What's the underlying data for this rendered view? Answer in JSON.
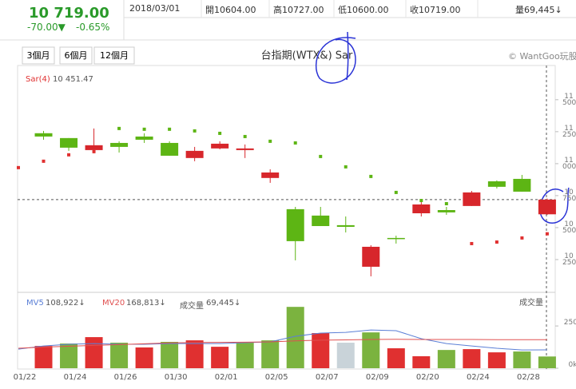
{
  "header": {
    "price": "10 719.00",
    "change": "-70.00▼",
    "change_pct": "-0.65%",
    "date": "2018/03/01",
    "open": "開10604.00",
    "high": "高10727.00",
    "low": "低10600.00",
    "close": "收10719.00",
    "volume": "量69,445↓"
  },
  "toolbar": {
    "ranges": [
      "3個月",
      "6個月",
      "12個月"
    ],
    "copyright": "© WantGoo玩股網"
  },
  "chart_data": {
    "type": "candlestick",
    "title": "台指期(WTX&) Sar",
    "categories": [
      "01/22",
      null,
      "01/24",
      null,
      "01/26",
      null,
      "01/30",
      null,
      "02/01",
      null,
      "02/05",
      null,
      "02/07",
      null,
      "02/09",
      null,
      "02/20",
      null,
      "02/24",
      null,
      "02/28",
      null
    ],
    "open": [
      null,
      11238,
      11200,
      11106,
      11162,
      11212,
      11162,
      11044,
      11119,
      11106,
      10888,
      10644,
      10594,
      10519,
      10194,
      10419,
      10612,
      10637,
      10669,
      10862,
      10881,
      10604
    ],
    "high": [
      null,
      11256,
      11200,
      11275,
      11175,
      11237,
      11175,
      11131,
      11175,
      11150,
      10956,
      10662,
      10662,
      10587,
      10362,
      10437,
      10712,
      10662,
      10787,
      10869,
      10912,
      10727
    ],
    "low": [
      null,
      11187,
      11100,
      11081,
      11087,
      11162,
      11062,
      11019,
      11112,
      11044,
      10850,
      10244,
      10512,
      10462,
      10119,
      10375,
      10587,
      10600,
      10669,
      10806,
      10781,
      10600
    ],
    "close": [
      null,
      11212,
      11125,
      11144,
      11131,
      11187,
      11062,
      11100,
      11156,
      11119,
      10931,
      10394,
      10512,
      10506,
      10350,
      10412,
      10681,
      10619,
      10775,
      10819,
      10781,
      10719
    ],
    "up_color": "#d7262b",
    "down_color": "#5db514",
    "ylim": [
      10000,
      11680
    ],
    "yticks": [
      {
        "value": 11500,
        "label": "11 500"
      },
      {
        "value": 11250,
        "label": "11 250"
      },
      {
        "value": 11000,
        "label": "11 000"
      },
      {
        "value": 10750,
        "label": "10 750"
      },
      {
        "value": 10500,
        "label": "10 500"
      },
      {
        "value": 10250,
        "label": "10 250"
      }
    ],
    "sar": {
      "name": "Sar(4)",
      "value_label": "10 451.47",
      "values": [
        10969,
        11019,
        11069,
        11094,
        11275,
        11269,
        11269,
        11256,
        11237,
        11212,
        11175,
        11162,
        11056,
        10975,
        10900,
        10775,
        10712,
        10687,
        10375,
        10387,
        10419,
        10451.47
      ],
      "colors": [
        "#e03030",
        "#e03030",
        "#e03030",
        "#e03030",
        "#5db514",
        "#5db514",
        "#5db514",
        "#5db514",
        "#5db514",
        "#5db514",
        "#5db514",
        "#5db514",
        "#5db514",
        "#5db514",
        "#5db514",
        "#5db514",
        "#5db514",
        "#5db514",
        "#e03030",
        "#e03030",
        "#e03030",
        "#e03030"
      ]
    },
    "volume": {
      "name": "成交量",
      "value_label": "69,445↓",
      "ylim": [
        0,
        430000
      ],
      "yticks": [
        {
          "value": 250000,
          "label": "250k"
        },
        {
          "value": 0,
          "label": "0k"
        }
      ],
      "values": [
        null,
        132000,
        146000,
        184000,
        151000,
        123000,
        156000,
        165000,
        127000,
        151000,
        165000,
        363000,
        208000,
        151000,
        212000,
        118000,
        71000,
        108000,
        113000,
        94000,
        99000,
        69445
      ],
      "colors": [
        null,
        "#e03030",
        "#7bb33f",
        "#e03030",
        "#7bb33f",
        "#e03030",
        "#7bb33f",
        "#e03030",
        "#e03030",
        "#7bb33f",
        "#7bb33f",
        "#7bb33f",
        "#e03030",
        "#c9d3d9",
        "#7bb33f",
        "#e03030",
        "#e03030",
        "#7bb33f",
        "#e03030",
        "#e03030",
        "#7bb33f",
        "#7bb33f"
      ],
      "ma": [
        {
          "name": "MV5",
          "value_label": "108,922↓",
          "color": "#5b7fd6",
          "values": [
            113000,
            132000,
            142000,
            146000,
            142000,
            142000,
            146000,
            146000,
            146000,
            151000,
            156000,
            189000,
            208000,
            212000,
            226000,
            222000,
            175000,
            146000,
            132000,
            118000,
            108000,
            108922
          ]
        },
        {
          "name": "MV20",
          "value_label": "168,813↓",
          "color": "#e05050",
          "values": [
            118000,
            125000,
            130000,
            135000,
            140000,
            145000,
            150000,
            152000,
            153000,
            154000,
            156000,
            162000,
            166000,
            168000,
            170000,
            171000,
            170000,
            170000,
            170000,
            169000,
            169000,
            168813
          ]
        }
      ]
    }
  }
}
